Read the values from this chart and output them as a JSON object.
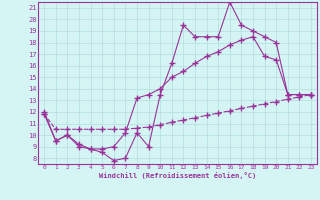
{
  "xlabel": "Windchill (Refroidissement éolien,°C)",
  "line1": {
    "x": [
      0,
      1,
      2,
      3,
      4,
      5,
      6,
      7,
      8,
      9,
      10,
      11,
      12,
      13,
      14,
      15,
      16,
      17,
      18,
      19,
      20,
      21,
      22,
      23
    ],
    "y": [
      12.0,
      9.5,
      10.0,
      9.0,
      8.8,
      8.5,
      7.8,
      8.0,
      10.2,
      9.0,
      13.5,
      16.2,
      19.5,
      18.5,
      18.5,
      18.5,
      21.5,
      19.5,
      19.0,
      18.5,
      18.0,
      13.5,
      13.5,
      13.5
    ]
  },
  "line2": {
    "x": [
      0,
      1,
      2,
      3,
      4,
      5,
      6,
      7,
      8,
      9,
      10,
      11,
      12,
      13,
      14,
      15,
      16,
      17,
      18,
      19,
      20,
      21,
      22,
      23
    ],
    "y": [
      11.8,
      9.5,
      10.0,
      9.2,
      8.8,
      8.8,
      9.0,
      10.2,
      13.2,
      13.5,
      14.0,
      15.0,
      15.5,
      16.2,
      16.8,
      17.2,
      17.8,
      18.2,
      18.5,
      16.8,
      16.5,
      13.5,
      13.5,
      13.5
    ]
  },
  "line3": {
    "x": [
      0,
      1,
      2,
      3,
      4,
      5,
      6,
      7,
      8,
      9,
      10,
      11,
      12,
      13,
      14,
      15,
      16,
      17,
      18,
      19,
      20,
      21,
      22,
      23
    ],
    "y": [
      11.8,
      10.5,
      10.5,
      10.5,
      10.5,
      10.5,
      10.5,
      10.5,
      10.6,
      10.7,
      10.9,
      11.1,
      11.3,
      11.5,
      11.7,
      11.9,
      12.1,
      12.3,
      12.5,
      12.7,
      12.9,
      13.1,
      13.3,
      13.5
    ]
  },
  "line_color": "#993399",
  "bg_color": "#d5f5f5",
  "grid_color": "#b0dede",
  "ylim": [
    7.5,
    21.5
  ],
  "xlim": [
    -0.5,
    23.5
  ],
  "yticks": [
    8,
    9,
    10,
    11,
    12,
    13,
    14,
    15,
    16,
    17,
    18,
    19,
    20,
    21
  ],
  "xticks": [
    0,
    1,
    2,
    3,
    4,
    5,
    6,
    7,
    8,
    9,
    10,
    11,
    12,
    13,
    14,
    15,
    16,
    17,
    18,
    19,
    20,
    21,
    22,
    23
  ]
}
